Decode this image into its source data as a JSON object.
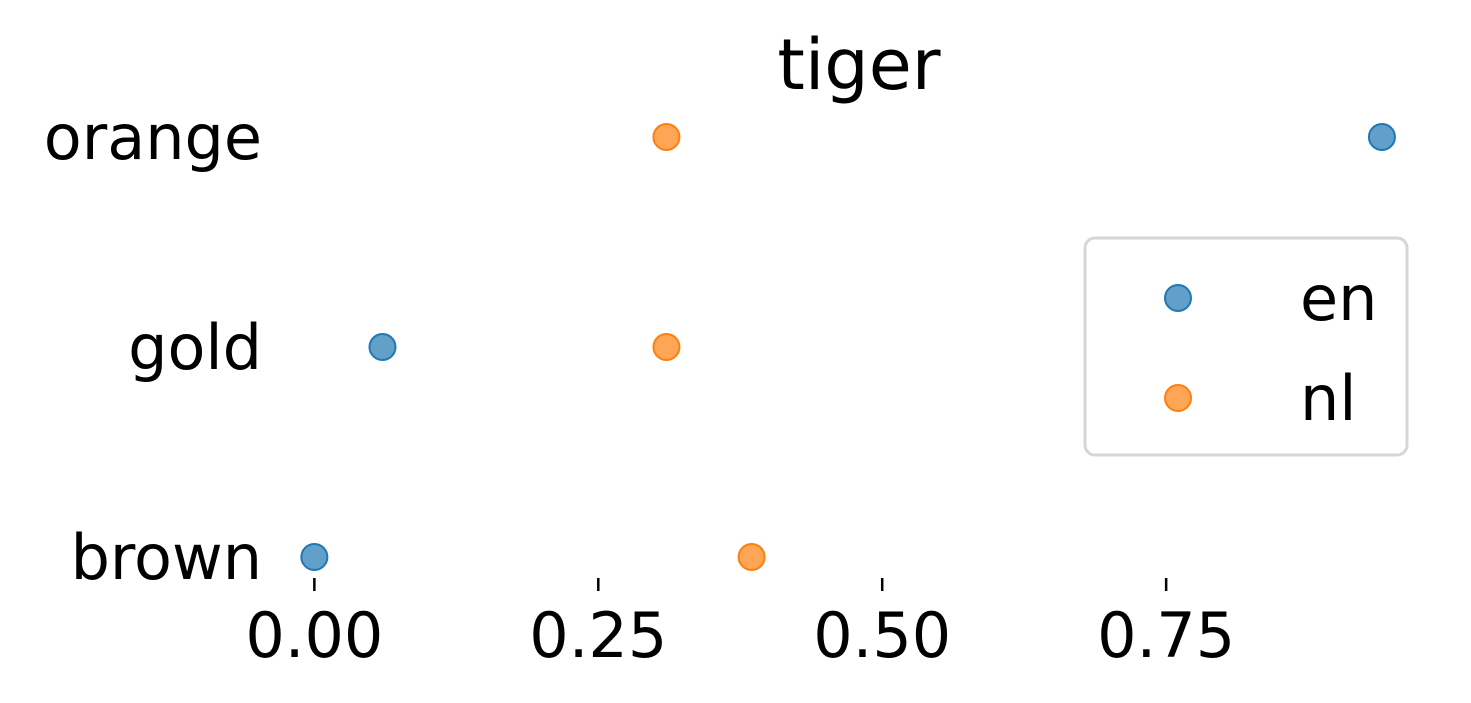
{
  "chart_data": {
    "type": "scatter",
    "title": "tiger",
    "xlabel": "",
    "ylabel": "",
    "categories": [
      "brown",
      "gold",
      "orange"
    ],
    "xlim": [
      -0.01,
      0.97
    ],
    "x_ticks": [
      0.0,
      0.25,
      0.5,
      0.75
    ],
    "x_tick_labels": [
      "0.00",
      "0.25",
      "0.50",
      "0.75"
    ],
    "grid": false,
    "legend_position": "center-right",
    "series": [
      {
        "name": "en",
        "color": "#1f77b4",
        "values": [
          0.0,
          0.06,
          0.94
        ]
      },
      {
        "name": "nl",
        "color": "#ff7f0e",
        "values": [
          0.385,
          0.31,
          0.31
        ]
      }
    ]
  }
}
